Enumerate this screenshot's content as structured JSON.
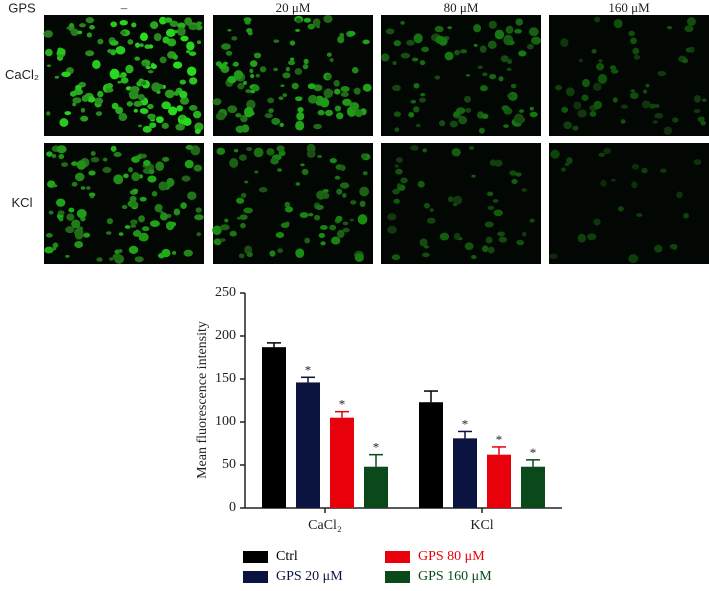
{
  "figure": {
    "row_header": "GPS",
    "columns": [
      "–",
      "20 μM",
      "80 μM",
      "160 μM"
    ],
    "rows": [
      "CaCl₂",
      "KCl"
    ]
  },
  "chart_data": {
    "type": "bar",
    "ylabel": "Mean fluorescence intensity",
    "categories": [
      "CaCl₂",
      "KCl"
    ],
    "ylim": [
      0,
      250
    ],
    "yticks": [
      0,
      50,
      100,
      150,
      200,
      250
    ],
    "series": [
      {
        "name": "Ctrl",
        "color": "#000000",
        "values": [
          187,
          123
        ],
        "errors": [
          5,
          13
        ]
      },
      {
        "name": "GPS 20 μM",
        "color": "#0b1440",
        "values": [
          146,
          81
        ],
        "errors": [
          6,
          8
        ],
        "marks": [
          "*",
          "*"
        ]
      },
      {
        "name": "GPS 80 μM",
        "color": "#e8000b",
        "values": [
          105,
          62
        ],
        "errors": [
          7,
          9
        ],
        "marks": [
          "*",
          "*"
        ]
      },
      {
        "name": "GPS 160 μM",
        "color": "#0a4a1a",
        "values": [
          48,
          48
        ],
        "errors": [
          14,
          8
        ],
        "marks": [
          "*",
          "*"
        ]
      }
    ]
  }
}
